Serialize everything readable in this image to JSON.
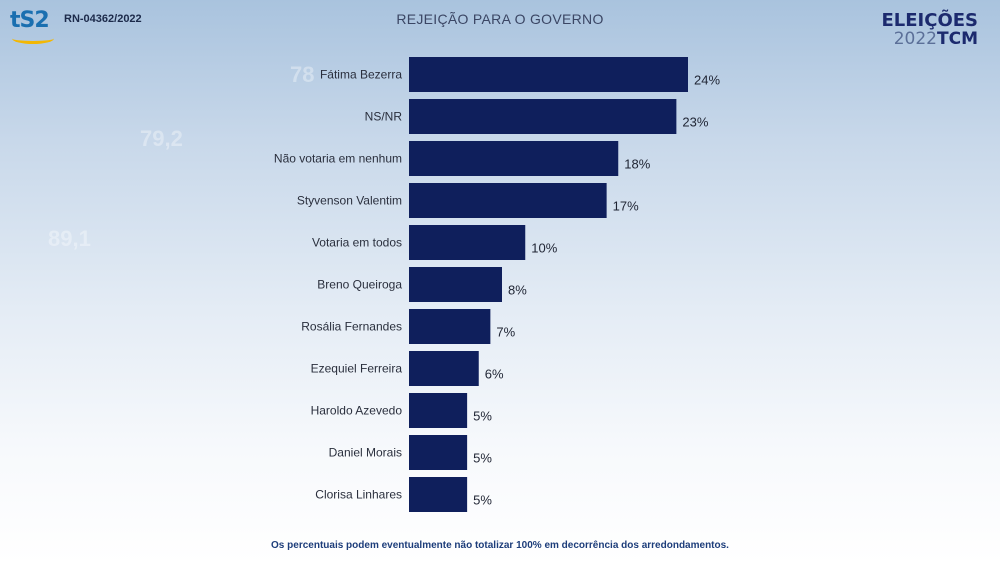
{
  "header": {
    "logo_text": "tS2",
    "registration_code": "RN-04362/2022",
    "brand_line1": "ELEIÇÕES",
    "brand_year": "2022",
    "brand_tcm": "TCM"
  },
  "footnote": "Os percentuais podem eventualmente não totalizar 100% em decorrência dos arredondamentos.",
  "colors": {
    "bar": "#0f1f5c",
    "label": "#2a2f3d",
    "value": "#1f2433"
  },
  "chart_data": {
    "type": "bar",
    "orientation": "horizontal",
    "title": "REJEIÇÃO PARA O GOVERNO",
    "categories": [
      "Fátima Bezerra",
      "NS/NR",
      "Não votaria em nenhum",
      "Styvenson Valentim",
      "Votaria em todos",
      "Breno Queiroga",
      "Rosália Fernandes",
      "Ezequiel Ferreira",
      "Haroldo Azevedo",
      "Daniel Morais",
      "Clorisa Linhares"
    ],
    "values": [
      24,
      23,
      18,
      17,
      10,
      8,
      7,
      6,
      5,
      5,
      5
    ],
    "value_labels": [
      "24%",
      "23%",
      "18%",
      "17%",
      "10%",
      "8%",
      "7%",
      "6%",
      "5%",
      "5%",
      "5%"
    ],
    "grid": false,
    "legend": "none"
  }
}
